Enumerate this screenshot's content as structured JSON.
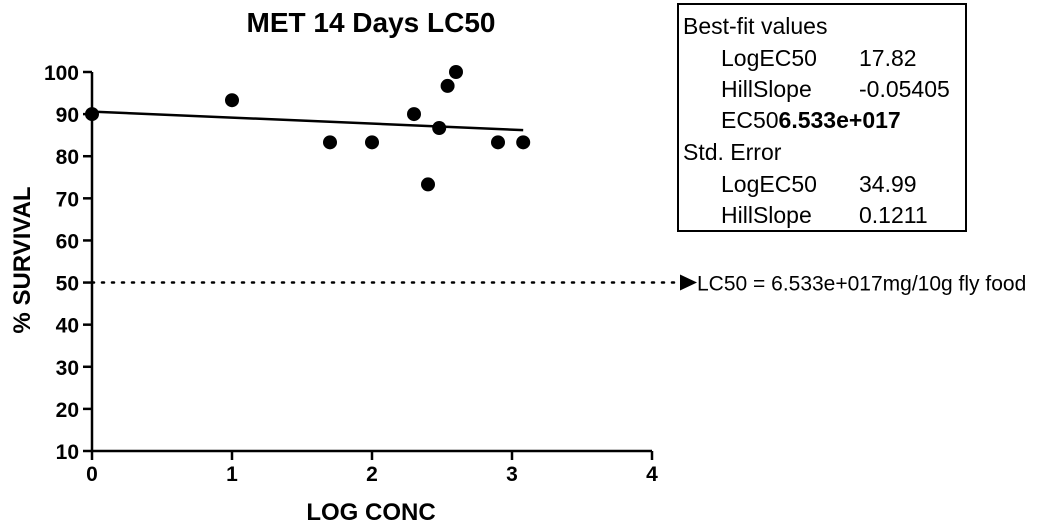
{
  "chart_data": {
    "type": "scatter",
    "title": "MET 14 Days LC50",
    "xlabel": "LOG CONC",
    "ylabel": "% SURVIVAL",
    "xlim": [
      0,
      4
    ],
    "ylim": [
      10,
      100
    ],
    "xticks": [
      "0",
      "1",
      "2",
      "3",
      "4"
    ],
    "yticks": [
      "10",
      "20",
      "30",
      "40",
      "50",
      "60",
      "70",
      "80",
      "90",
      "100"
    ],
    "points": [
      {
        "x": 0,
        "y": 90
      },
      {
        "x": 1.0,
        "y": 93.3
      },
      {
        "x": 1.7,
        "y": 83.3
      },
      {
        "x": 2.0,
        "y": 83.3
      },
      {
        "x": 2.3,
        "y": 90
      },
      {
        "x": 2.4,
        "y": 73.3
      },
      {
        "x": 2.48,
        "y": 86.7
      },
      {
        "x": 2.54,
        "y": 96.7
      },
      {
        "x": 2.6,
        "y": 100
      },
      {
        "x": 2.9,
        "y": 83.3
      },
      {
        "x": 3.08,
        "y": 83.3
      }
    ],
    "fit_line": {
      "x": [
        0,
        3.08
      ],
      "y": [
        90.6,
        86.2
      ]
    },
    "reference_line": {
      "y": 50,
      "style": "dotted",
      "x_start": 0
    },
    "annotation": "LC50 = 6.533e+017mg/10g fly food",
    "grid": false,
    "legend": "none"
  },
  "stats_box": {
    "heading1": "Best-fit values",
    "rows1": [
      {
        "label": "LogEC50",
        "value": "17.82"
      },
      {
        "label": "HillSlope",
        "value": "-0.05405"
      }
    ],
    "ec50_label": "EC50",
    "ec50_value": "6.533e+017",
    "heading2": "Std. Error",
    "rows2": [
      {
        "label": "LogEC50",
        "value": "34.99"
      },
      {
        "label": "HillSlope",
        "value": "0.1211"
      }
    ]
  }
}
